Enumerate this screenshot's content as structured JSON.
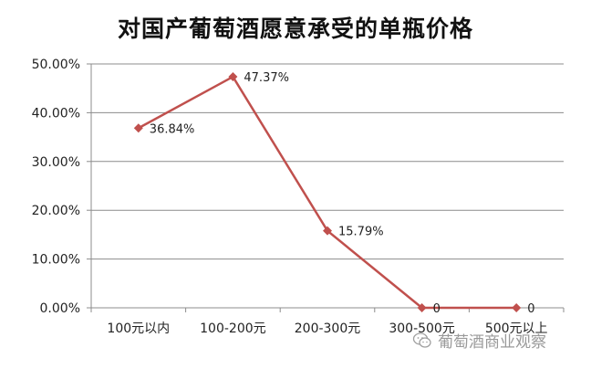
{
  "chart_data": {
    "type": "line",
    "title": "对国产葡萄酒愿意承受的单瓶价格",
    "categories": [
      "100元以内",
      "100-200元",
      "200-300元",
      "300-500元",
      "500元以上"
    ],
    "values": [
      36.84,
      47.37,
      15.79,
      0,
      0
    ],
    "data_labels": [
      "36.84%",
      "47.37%",
      "15.79%",
      "0",
      "0"
    ],
    "y_ticks": [
      "0.00%",
      "10.00%",
      "20.00%",
      "30.00%",
      "40.00%",
      "50.00%"
    ],
    "ylim": [
      0,
      50
    ],
    "grid": true,
    "series_color": "#c0504d",
    "xlabel": "",
    "ylabel": ""
  },
  "watermark": {
    "text": "葡萄酒商业观察",
    "icon": "wechat-icon"
  }
}
